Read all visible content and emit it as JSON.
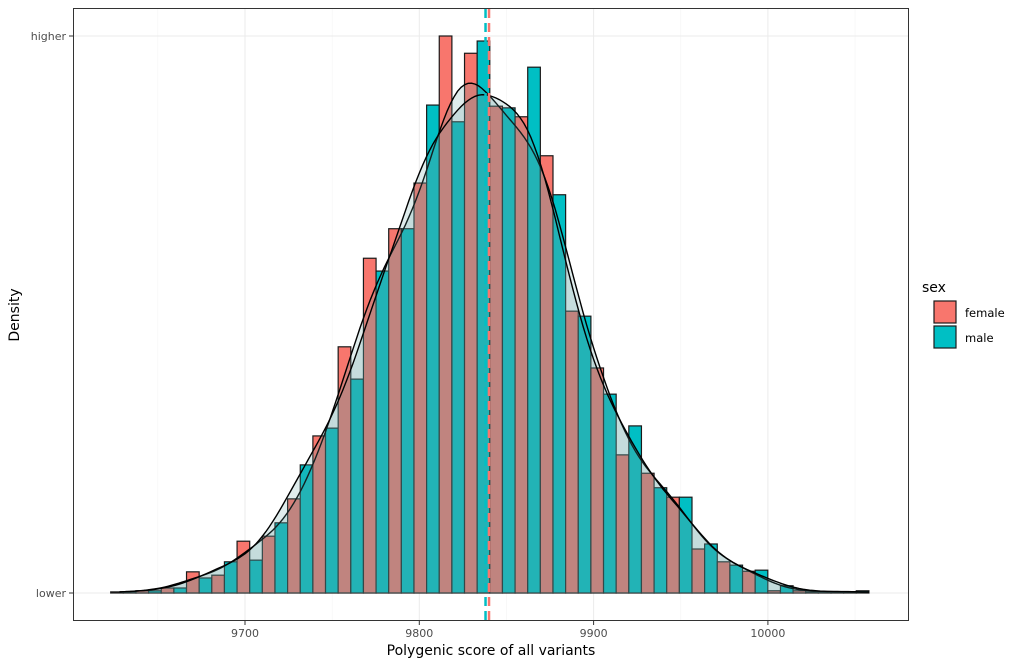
{
  "chart_data": {
    "type": "bar",
    "title": "",
    "xlabel": "Polygenic score of all variants",
    "ylabel": "Density",
    "x_ticks": [
      "9700",
      "9800",
      "9900",
      "10000"
    ],
    "x_tick_values": [
      9700,
      9800,
      9900,
      10000
    ],
    "y_ticks": [
      "lower",
      "higher"
    ],
    "y_tick_values": [
      0,
      1
    ],
    "xlim": [
      9620,
      10080
    ],
    "ylim": [
      -0.04,
      1.05
    ],
    "grid": true,
    "legend": {
      "title": "sex",
      "placement": "right"
    },
    "bin_centers": [
      9630.2,
      9644.7,
      9659.2,
      9673.7,
      9688.2,
      9702.7,
      9717.2,
      9731.7,
      9746.2,
      9760.7,
      9775.2,
      9789.7,
      9804.2,
      9818.7,
      9833.2,
      9847.7,
      9862.2,
      9876.7,
      9891.2,
      9905.7,
      9920.2,
      9934.7,
      9949.2,
      9963.7,
      9978.2,
      9992.7,
      10007.2,
      10021.7,
      10036.2,
      10050.7
    ],
    "bin_width": 14.5,
    "series": [
      {
        "name": "female",
        "color": "#F8766D",
        "values": [
          0.002,
          0.004,
          0.009,
          0.038,
          0.032,
          0.093,
          0.102,
          0.169,
          0.282,
          0.442,
          0.601,
          0.654,
          0.736,
          1.0,
          0.969,
          0.874,
          0.855,
          0.785,
          0.506,
          0.404,
          0.248,
          0.215,
          0.172,
          0.079,
          0.056,
          0.039,
          0.004,
          0.004,
          0.002,
          0.002
        ],
        "mean": 9840
      },
      {
        "name": "male",
        "color": "#00BFC4",
        "values": [
          0.002,
          0.004,
          0.009,
          0.027,
          0.056,
          0.059,
          0.126,
          0.23,
          0.296,
          0.384,
          0.578,
          0.654,
          0.876,
          0.846,
          0.991,
          0.871,
          0.944,
          0.715,
          0.497,
          0.357,
          0.3,
          0.189,
          0.172,
          0.088,
          0.05,
          0.041,
          0.013,
          0.002,
          0.002,
          0.004
        ],
        "mean": 9838
      }
    ],
    "overlays": [
      "density curve per sex",
      "dashed mean line per sex"
    ]
  }
}
